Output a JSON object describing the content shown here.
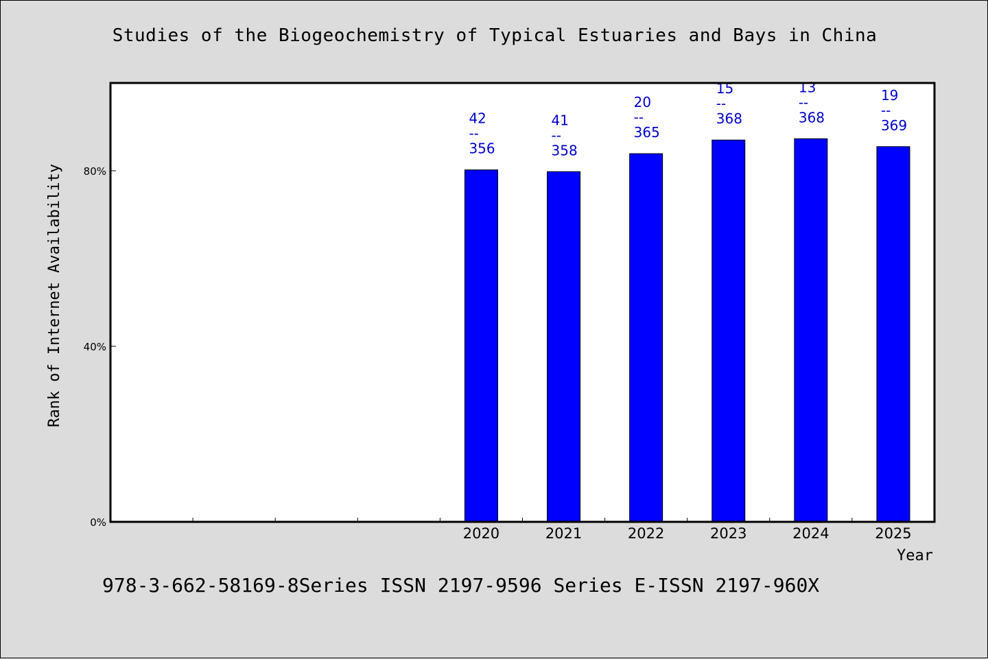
{
  "chart_data": {
    "type": "bar",
    "title": "Studies of the Biogeochemistry of Typical Estuaries and Bays in China",
    "xlabel": "Year",
    "ylabel": "Rank of Internet Availability",
    "x_slots": 10,
    "categories": [
      "2020",
      "2021",
      "2022",
      "2023",
      "2024",
      "2025"
    ],
    "values": [
      80.2,
      79.8,
      83.9,
      87.0,
      87.3,
      85.5
    ],
    "bar_labels": [
      {
        "top": "42",
        "sep": "--",
        "bottom": "356"
      },
      {
        "top": "41",
        "sep": "--",
        "bottom": "358"
      },
      {
        "top": "20",
        "sep": "--",
        "bottom": "365"
      },
      {
        "top": "15",
        "sep": "--",
        "bottom": "368"
      },
      {
        "top": "13",
        "sep": "--",
        "bottom": "368"
      },
      {
        "top": "19",
        "sep": "--",
        "bottom": "369"
      }
    ],
    "yticks": [
      {
        "value": 0,
        "label": "0%"
      },
      {
        "value": 40,
        "label": "40%"
      },
      {
        "value": 80,
        "label": "80%"
      }
    ],
    "ylim": [
      0,
      100
    ],
    "grid": false,
    "colors": {
      "bar": "#0000ff",
      "bar_label": "#0000cc",
      "plot_bg": "#ffffff",
      "page_bg": "#dcdcdc"
    }
  },
  "footer": "978-3-662-58169-8Series ISSN 2197-9596 Series E-ISSN 2197-960X"
}
